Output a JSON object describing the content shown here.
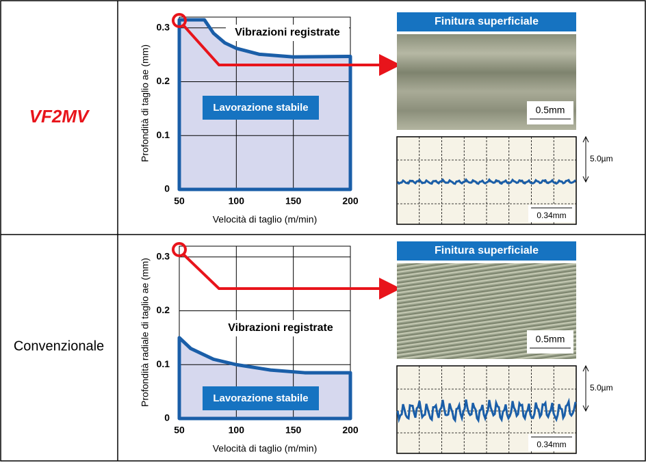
{
  "chart_data": [
    {
      "type": "area",
      "row_label": "VF2MV",
      "xlabel": "Velocità di taglio (m/min)",
      "ylabel": "Profondità di taglio  ae (mm)",
      "xlim": [
        50,
        200
      ],
      "ylim": [
        0,
        0.32
      ],
      "xticks": [
        50,
        100,
        150,
        200
      ],
      "yticks": [
        0,
        0.1,
        0.2,
        0.3
      ],
      "grid": true,
      "series": [
        {
          "name": "Lavorazione stabile",
          "color": "#1a5ea8",
          "x": [
            50,
            50,
            72,
            80,
            90,
            100,
            120,
            150,
            200,
            200
          ],
          "values": [
            0,
            0.315,
            0.315,
            0.29,
            0.272,
            0.262,
            0.251,
            0.246,
            0.247,
            0
          ]
        }
      ],
      "unstable_label": "Vibrazioni registrate",
      "stable_label": "Lavorazione stabile",
      "finish_title": "Finitura superficiale",
      "photo_scale": "0.5mm",
      "profile_height": "5.0µm",
      "profile_length": "0.34mm"
    },
    {
      "type": "area",
      "row_label": "Convenzionale",
      "xlabel": "Velocità di taglio (m/min)",
      "ylabel": "Profondità radiale di taglio  ae (mm)",
      "xlim": [
        50,
        200
      ],
      "ylim": [
        0,
        0.32
      ],
      "xticks": [
        50,
        100,
        150,
        200
      ],
      "yticks": [
        0,
        0.1,
        0.2,
        0.3
      ],
      "grid": true,
      "series": [
        {
          "name": "Lavorazione stabile",
          "color": "#1a5ea8",
          "x": [
            50,
            50,
            60,
            80,
            100,
            130,
            160,
            200,
            200
          ],
          "values": [
            0,
            0.15,
            0.13,
            0.11,
            0.1,
            0.09,
            0.085,
            0.085,
            0
          ]
        }
      ],
      "unstable_label": "Vibrazioni registrate",
      "stable_label": "Lavorazione stabile",
      "finish_title": "Finitura superficiale",
      "photo_scale": "0.5mm",
      "profile_height": "5.0µm",
      "profile_length": "0.34mm"
    }
  ]
}
